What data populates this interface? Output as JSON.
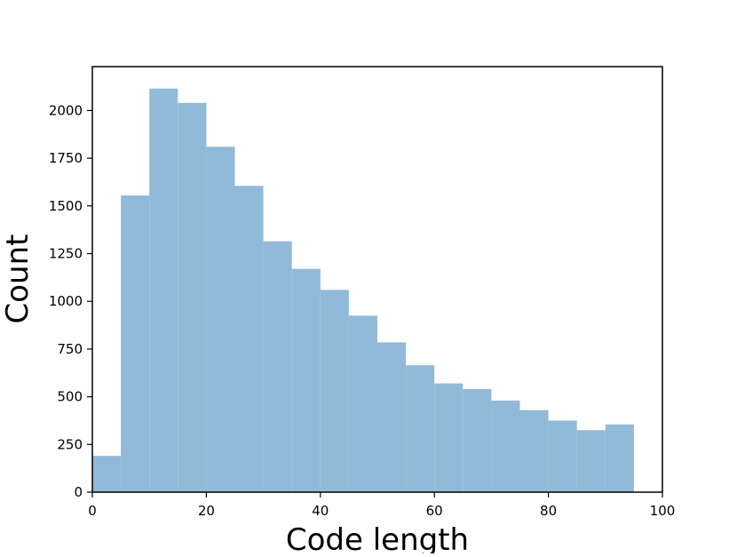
{
  "chart_data": {
    "type": "bar",
    "title": "",
    "xlabel": "Code length",
    "ylabel": "Count",
    "bin_edges": [
      0,
      5,
      10,
      15,
      20,
      25,
      30,
      35,
      40,
      45,
      50,
      55,
      60,
      65,
      70,
      75,
      80,
      85,
      90,
      95
    ],
    "values": [
      190,
      1555,
      2115,
      2040,
      1810,
      1605,
      1315,
      1170,
      1060,
      925,
      785,
      665,
      570,
      540,
      480,
      430,
      375,
      325,
      355
    ],
    "xlim": [
      0,
      100
    ],
    "ylim": [
      0,
      2230
    ],
    "xticks": [
      0,
      20,
      40,
      60,
      80,
      100
    ],
    "yticks": [
      0,
      250,
      500,
      750,
      1000,
      1250,
      1500,
      1750,
      2000
    ],
    "grid": false,
    "colors": {
      "bar": "#91bad8",
      "axes": "#000000"
    }
  }
}
